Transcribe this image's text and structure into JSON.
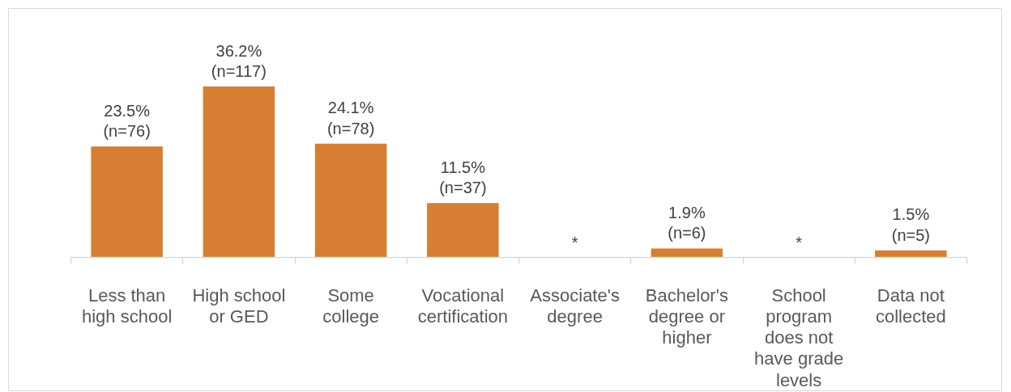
{
  "chart_data": {
    "type": "bar",
    "categories": [
      "Less than high school",
      "High school or GED",
      "Some college",
      "Vocational certification",
      "Associate's degree",
      "Bachelor's degree or higher",
      "School program does not have grade levels",
      "Data not collected"
    ],
    "values": [
      23.5,
      36.2,
      24.1,
      11.5,
      null,
      1.9,
      null,
      1.5
    ],
    "value_labels": [
      "23.5% (n=76)",
      "36.2% (n=117)",
      "24.1% (n=78)",
      "11.5% (n=37)",
      "*",
      "1.9% (n=6)",
      "*",
      "1.5% (n=5)"
    ],
    "color": "#d67e32"
  }
}
